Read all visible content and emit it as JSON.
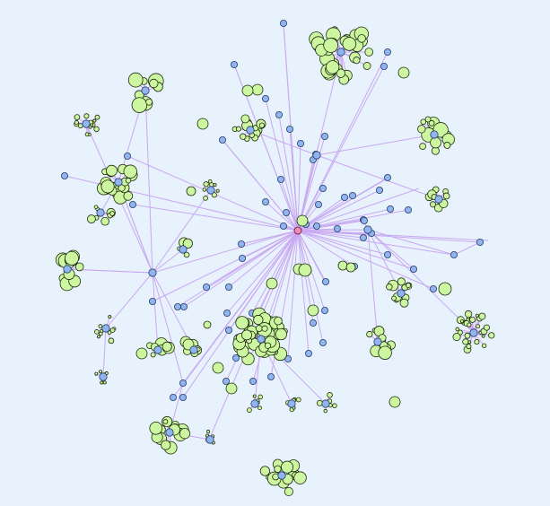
{
  "graph": {
    "background": "#e8f2fc",
    "edge_color": "#c9a8f2",
    "hub_fill": "#8fb4f0",
    "hub_stroke": "#2a3f6a",
    "leaf_fill": "#ccf7a0",
    "leaf_stroke": "#1f2a10",
    "root_fill": "#f28ab8",
    "root_stroke": "#5a1a34",
    "node_types": [
      "root",
      "hub",
      "leaf"
    ]
  }
}
